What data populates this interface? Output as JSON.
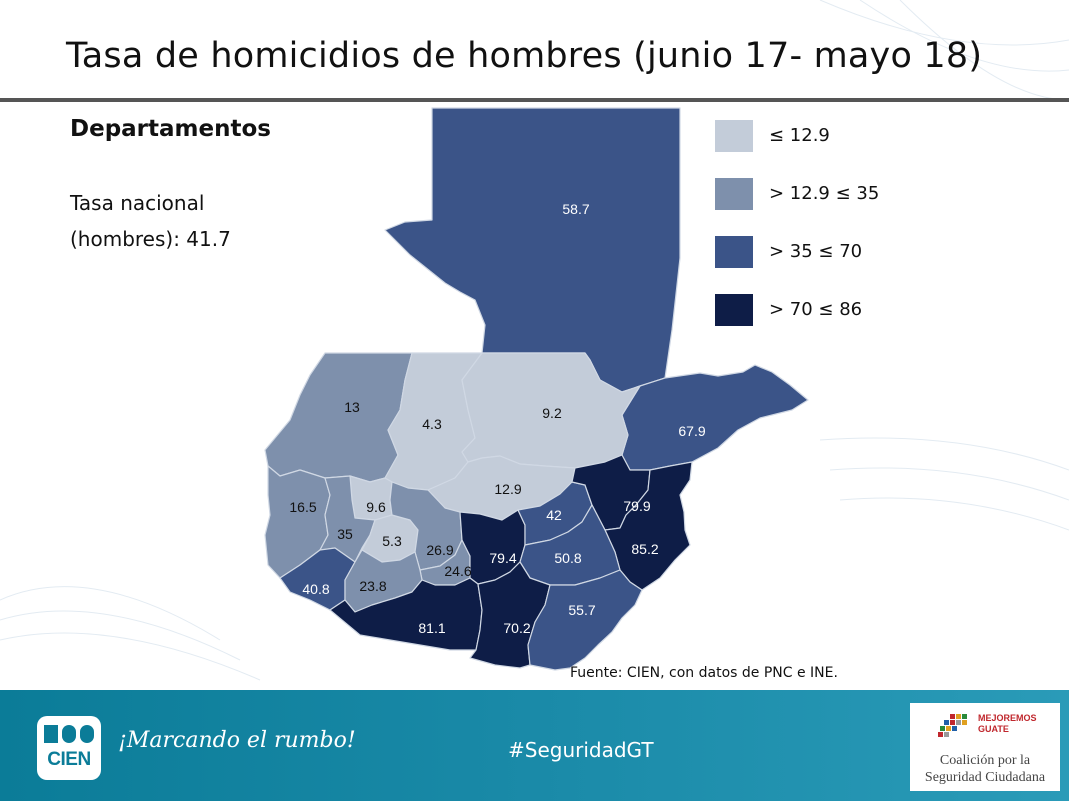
{
  "title": "Tasa de homicidios de hombres (junio 17- mayo 18)",
  "sidebar": {
    "heading": "Departamentos",
    "national_line1": "Tasa nacional",
    "national_line2": "(hombres): 41.7"
  },
  "legend": [
    {
      "label": "≤ 12.9",
      "color": "#c3ccd9"
    },
    {
      "label": "> 12.9 ≤ 35",
      "color": "#7e90ac"
    },
    {
      "label": "> 35 ≤ 70",
      "color": "#3b5488"
    },
    {
      "label": "> 70  ≤ 86",
      "color": "#0e1d47"
    }
  ],
  "map": {
    "department_rates": [
      "58.7",
      "67.9",
      "13",
      "4.3",
      "9.2",
      "12.9",
      "16.5",
      "9.6",
      "35",
      "5.3",
      "26.9",
      "24.6",
      "79.4",
      "42",
      "79.9",
      "85.2",
      "50.8",
      "40.8",
      "23.8",
      "55.7",
      "81.1",
      "70.2"
    ],
    "light_label_color": "#ffffff",
    "dark_label_color": "#111111"
  },
  "source": "Fuente: CIEN, con datos de PNC e INE.",
  "footer": {
    "logo_text": "CIEN",
    "slogan": "¡Marcando el rumbo!",
    "hashtag": "#SeguridadGT",
    "partner_line1": "MEJOREMOS",
    "partner_line2": "GUATE",
    "coalition_line1": "Coalición por la",
    "coalition_line2": "Seguridad Ciudadana"
  }
}
